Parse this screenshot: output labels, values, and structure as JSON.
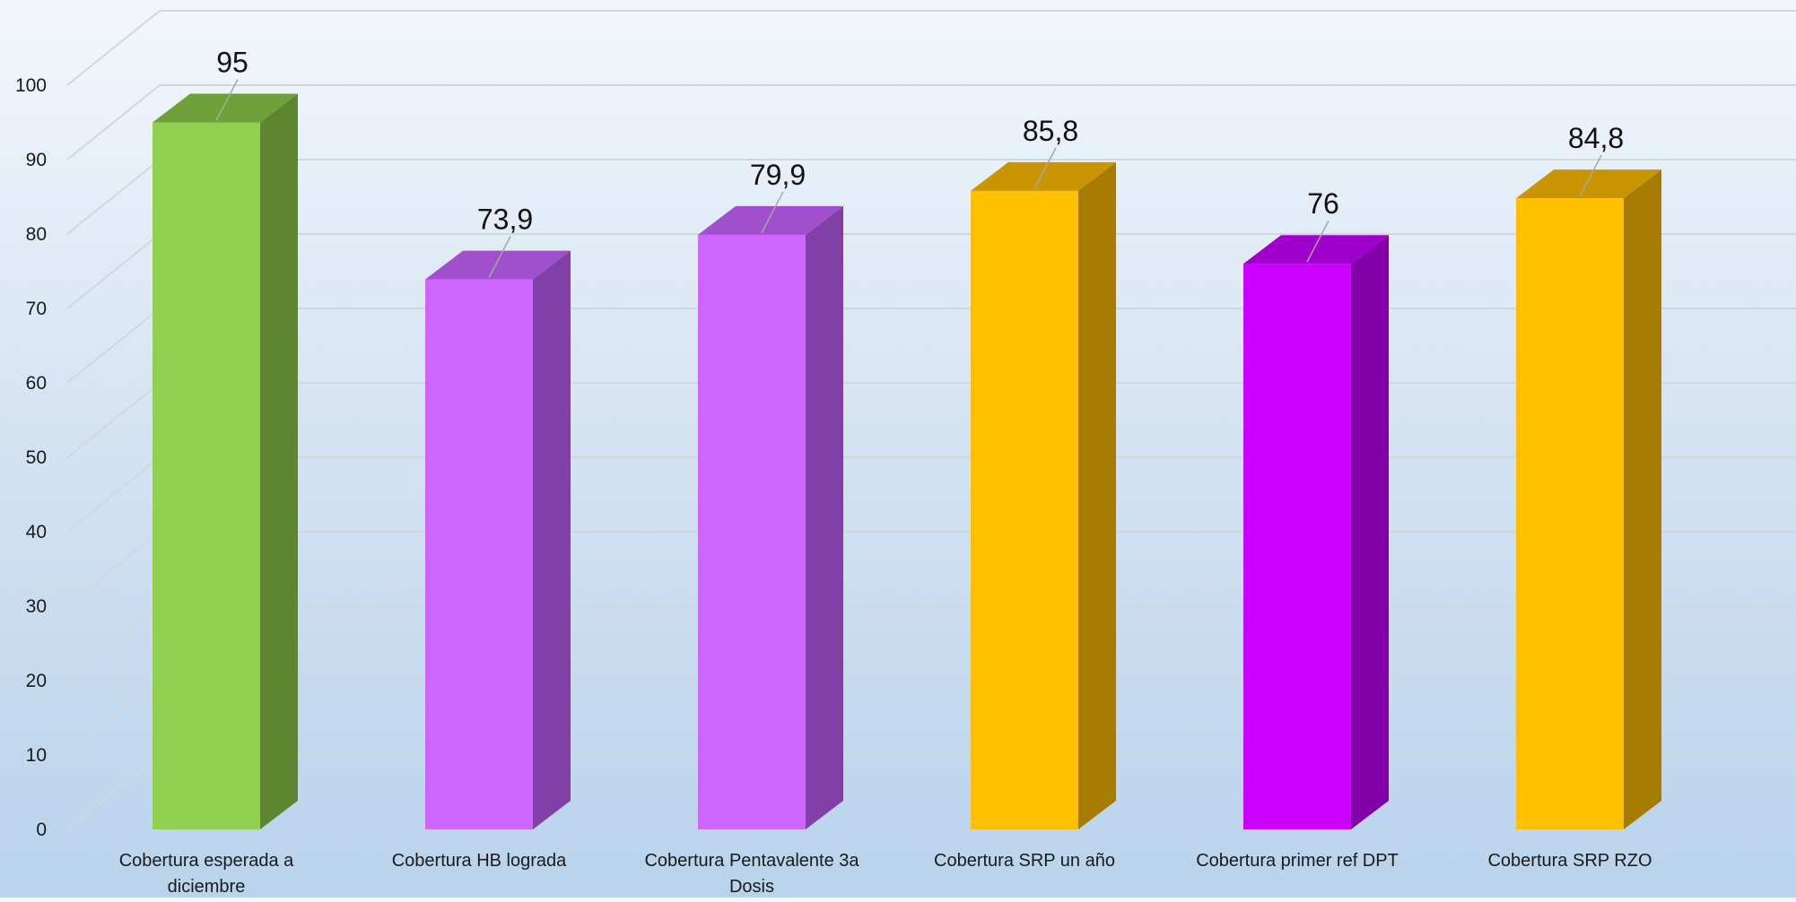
{
  "chart_data": {
    "type": "bar",
    "categories": [
      "Cobertura esperada a diciembre",
      "Cobertura HB lograda",
      "Cobertura Pentavalente 3a Dosis",
      "Cobertura SRP un año",
      "Cobertura primer ref DPT",
      "Cobertura  SRP RZO"
    ],
    "category_lines": [
      [
        "Cobertura esperada a",
        "diciembre"
      ],
      [
        "Cobertura HB lograda"
      ],
      [
        "Cobertura Pentavalente 3a",
        "Dosis"
      ],
      [
        "Cobertura SRP un año"
      ],
      [
        "Cobertura primer ref DPT"
      ],
      [
        "Cobertura  SRP RZO"
      ]
    ],
    "values": [
      95,
      73.9,
      79.9,
      85.8,
      76,
      84.8
    ],
    "data_labels": [
      "95",
      "73,9",
      "79,9",
      "85,8",
      "76",
      "84,8"
    ],
    "colors": {
      "front": [
        "#92d050",
        "#cc66ff",
        "#cc66ff",
        "#ffc000",
        "#cc00ff",
        "#ffc000"
      ],
      "side": [
        "#5e8631",
        "#8040a8",
        "#8040a8",
        "#a67c00",
        "#8200a8",
        "#a67c00"
      ],
      "top": [
        "#70a03a",
        "#a050cc",
        "#a050cc",
        "#c99500",
        "#a000cc",
        "#c99500"
      ]
    },
    "ylim": [
      0,
      100
    ],
    "yticks": [
      0,
      10,
      20,
      30,
      40,
      50,
      60,
      70,
      80,
      90,
      100
    ],
    "title": "",
    "xlabel": "",
    "ylabel": "",
    "grid": true,
    "legend": "none",
    "style": "3d-column"
  }
}
